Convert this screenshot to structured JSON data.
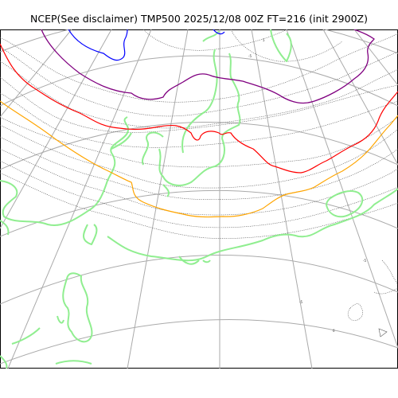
{
  "title": "NCEP(See disclaimer) TMP500 2025/12/08 00Z FT=216 (init 2900Z)",
  "colors": {
    "background": "#ffffff",
    "graticule": "#aaaaaa",
    "coastline": "#90ee90",
    "isotherm": "#555555",
    "contour_blue": "#0000ff",
    "contour_purple": "#800080",
    "contour_red": "#ff0000",
    "contour_orange": "#ffa500"
  },
  "map": {
    "projection": "polar stereographic",
    "variable": "TMP500",
    "contour_labels": [
      "5",
      "-5",
      "-5",
      "-5",
      "0"
    ]
  }
}
